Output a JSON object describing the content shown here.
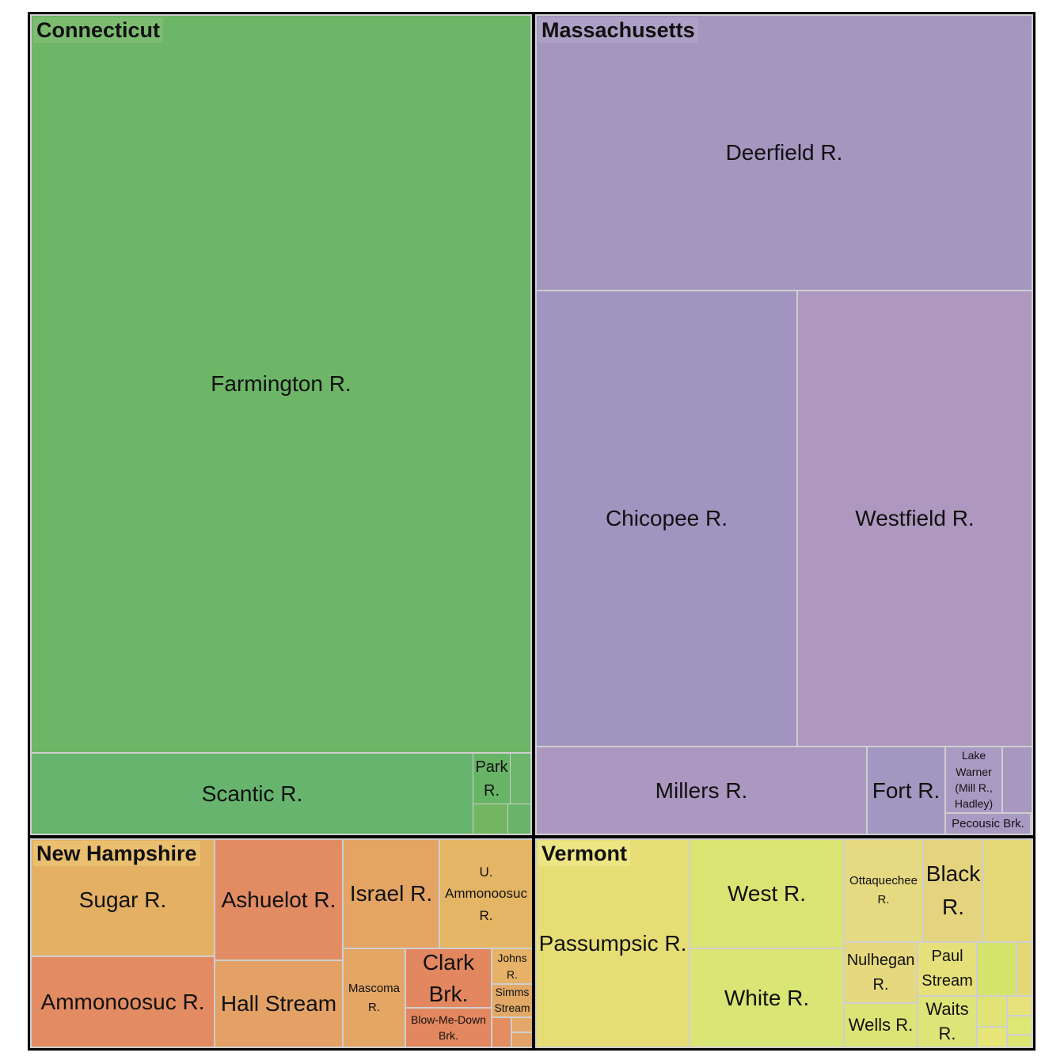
{
  "groups": [
    {
      "label": "Connecticut",
      "items": [
        "Farmington R.",
        "Scantic R.",
        "Park R."
      ]
    },
    {
      "label": "Massachusetts",
      "items": [
        "Deerfield R.",
        "Chicopee R.",
        "Westfield R.",
        "Millers R.",
        "Fort R.",
        "Lake Warner (Mill R., Hadley)",
        "Pecousic Brk."
      ]
    },
    {
      "label": "New Hampshire",
      "items": [
        "Sugar R.",
        "Ammonoosuc R.",
        "Ashuelot R.",
        "Hall Stream",
        "Israel R.",
        "U. Ammonoosuc R.",
        "Mascoma R.",
        "Clark Brk.",
        "Blow-Me-Down Brk.",
        "Johns R.",
        "Simms Stream"
      ]
    },
    {
      "label": "Vermont",
      "items": [
        "Passumpsic R.",
        "West R.",
        "White R.",
        "Ottaquechee R.",
        "Black R.",
        "Nulhegan R.",
        "Wells R.",
        "Paul Stream",
        "Waits R."
      ]
    }
  ]
}
